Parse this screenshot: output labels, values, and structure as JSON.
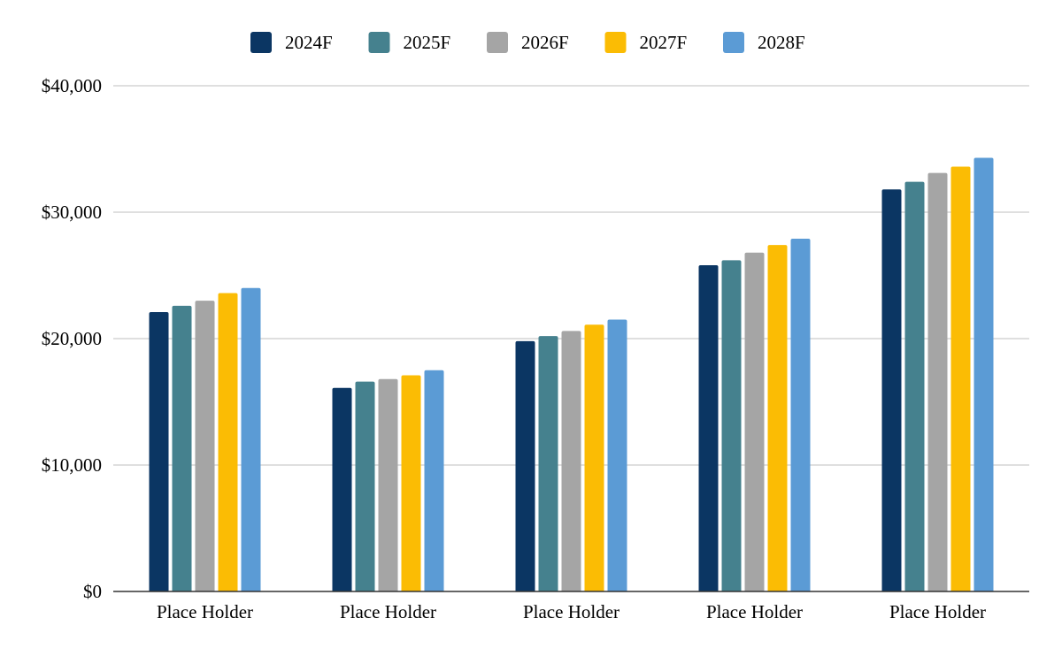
{
  "chart_data": {
    "type": "bar",
    "title": "",
    "xlabel": "",
    "ylabel": "",
    "ylim": [
      0,
      40000
    ],
    "yticks": [
      0,
      10000,
      20000,
      30000,
      40000
    ],
    "ytick_labels": [
      "$0",
      "$10,000",
      "$20,000",
      "$30,000",
      "$40,000"
    ],
    "grid": true,
    "legend_position": "top-center",
    "categories": [
      "Place Holder",
      "Place Holder",
      "Place Holder",
      "Place Holder",
      "Place Holder"
    ],
    "series": [
      {
        "name": "2024F",
        "color": "#0b3663",
        "values": [
          22100,
          16100,
          19800,
          25800,
          31800
        ]
      },
      {
        "name": "2025F",
        "color": "#45818e",
        "values": [
          22600,
          16600,
          20200,
          26200,
          32400
        ]
      },
      {
        "name": "2026F",
        "color": "#a5a5a5",
        "values": [
          23000,
          16800,
          20600,
          26800,
          33100
        ]
      },
      {
        "name": "2027F",
        "color": "#fbbc04",
        "values": [
          23600,
          17100,
          21100,
          27400,
          33600
        ]
      },
      {
        "name": "2028F",
        "color": "#5b9bd5",
        "values": [
          24000,
          17500,
          21500,
          27900,
          34300
        ]
      }
    ]
  }
}
